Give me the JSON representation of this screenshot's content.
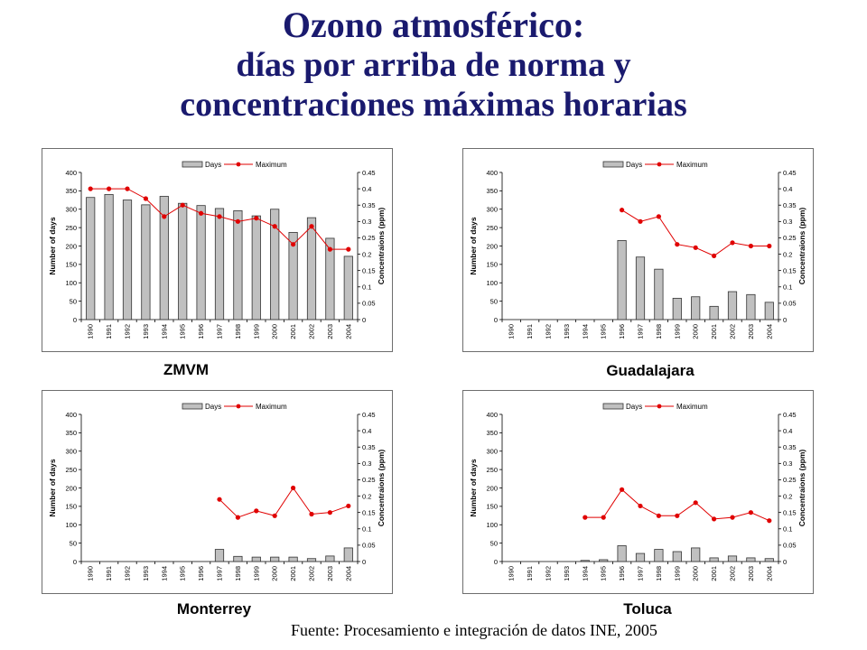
{
  "title": {
    "line1": "Ozono atmosférico:",
    "line2": "días por arriba de norma y",
    "line3": "concentraciones máximas horarias"
  },
  "source": "Fuente: Procesamiento e integración de datos INE, 2005",
  "colors": {
    "title": "#1a1a6e",
    "bar_fill": "#c0c0c0",
    "line": "#e00000"
  },
  "chart_data": [
    {
      "type": "bar",
      "city": "ZMVM",
      "categories": [
        "1990",
        "1991",
        "1992",
        "1993",
        "1994",
        "1995",
        "1996",
        "1997",
        "1998",
        "1999",
        "2000",
        "2001",
        "2002",
        "2003",
        "2004"
      ],
      "ylabel": "Number of days",
      "y2label": "Concentraions (ppm)",
      "ylim": [
        0,
        400
      ],
      "y2lim": [
        0,
        0.45
      ],
      "yticks": [
        "0",
        "50",
        "100",
        "150",
        "200",
        "250",
        "300",
        "350",
        "400"
      ],
      "y2ticks": [
        "0",
        "0.05",
        "0.1",
        "0.15",
        "0.2",
        "0.25",
        "0.3",
        "0.35",
        "0.4",
        "0.45"
      ],
      "legend": [
        "Days",
        "Maximum"
      ],
      "series": [
        {
          "name": "Days",
          "kind": "bar",
          "values": [
            332,
            340,
            325,
            312,
            335,
            316,
            310,
            302,
            296,
            282,
            300,
            237,
            277,
            221,
            172
          ]
        },
        {
          "name": "Maximum",
          "kind": "line",
          "values": [
            0.4,
            0.4,
            0.4,
            0.37,
            0.315,
            0.35,
            0.325,
            0.315,
            0.3,
            0.31,
            0.285,
            0.23,
            0.285,
            0.215,
            0.215
          ]
        }
      ]
    },
    {
      "type": "bar",
      "city": "Guadalajara",
      "categories": [
        "1990",
        "1991",
        "1992",
        "1993",
        "1994",
        "1995",
        "1996",
        "1997",
        "1998",
        "1999",
        "2000",
        "2001",
        "2002",
        "2003",
        "2004"
      ],
      "ylabel": "Number of days",
      "y2label": "Concentraions (ppm)",
      "ylim": [
        0,
        400
      ],
      "y2lim": [
        0,
        0.45
      ],
      "yticks": [
        "0",
        "50",
        "100",
        "150",
        "200",
        "250",
        "300",
        "350",
        "400"
      ],
      "y2ticks": [
        "0",
        "0.05",
        "0.1",
        "0.15",
        "0.2",
        "0.25",
        "0.3",
        "0.35",
        "0.4",
        "0.45"
      ],
      "legend": [
        "Days",
        "Maximum"
      ],
      "series": [
        {
          "name": "Days",
          "kind": "bar",
          "values": [
            null,
            null,
            null,
            null,
            null,
            null,
            215,
            170,
            137,
            58,
            62,
            36,
            76,
            68,
            47
          ]
        },
        {
          "name": "Maximum",
          "kind": "line",
          "values": [
            null,
            null,
            null,
            null,
            null,
            null,
            0.335,
            0.3,
            0.315,
            0.23,
            0.22,
            0.195,
            0.235,
            0.225,
            0.225
          ]
        }
      ]
    },
    {
      "type": "bar",
      "city": "Monterrey",
      "categories": [
        "1990",
        "1991",
        "1992",
        "1993",
        "1994",
        "1995",
        "1996",
        "1997",
        "1998",
        "1999",
        "2000",
        "2001",
        "2002",
        "2003",
        "2004"
      ],
      "ylabel": "Number of days",
      "y2label": "Concentraions (ppm)",
      "ylim": [
        0,
        400
      ],
      "y2lim": [
        0,
        0.45
      ],
      "yticks": [
        "0",
        "50",
        "100",
        "150",
        "200",
        "250",
        "300",
        "350",
        "400"
      ],
      "y2ticks": [
        "0",
        "0.05",
        "0.1",
        "0.15",
        "0.2",
        "0.25",
        "0.3",
        "0.35",
        "0.4",
        "0.45"
      ],
      "legend": [
        "Days",
        "Maximum"
      ],
      "series": [
        {
          "name": "Days",
          "kind": "bar",
          "values": [
            null,
            null,
            null,
            null,
            null,
            null,
            null,
            33,
            14,
            12,
            12,
            12,
            8,
            15,
            37
          ]
        },
        {
          "name": "Maximum",
          "kind": "line",
          "values": [
            null,
            null,
            null,
            null,
            null,
            null,
            null,
            0.19,
            0.135,
            0.155,
            0.14,
            0.225,
            0.145,
            0.15,
            0.17
          ]
        }
      ]
    },
    {
      "type": "bar",
      "city": "Toluca",
      "categories": [
        "1990",
        "1991",
        "1992",
        "1993",
        "1994",
        "1995",
        "1996",
        "1997",
        "1998",
        "1999",
        "2000",
        "2001",
        "2002",
        "2003",
        "2004"
      ],
      "ylabel": "Number of days",
      "y2label": "Concentraions (ppm)",
      "ylim": [
        0,
        400
      ],
      "y2lim": [
        0,
        0.45
      ],
      "yticks": [
        "0",
        "50",
        "100",
        "150",
        "200",
        "250",
        "300",
        "350",
        "400"
      ],
      "y2ticks": [
        "0",
        "0.05",
        "0.1",
        "0.15",
        "0.2",
        "0.25",
        "0.3",
        "0.35",
        "0.4",
        "0.45"
      ],
      "legend": [
        "Days",
        "Maximum"
      ],
      "series": [
        {
          "name": "Days",
          "kind": "bar",
          "values": [
            null,
            null,
            null,
            null,
            3,
            5,
            43,
            22,
            33,
            27,
            37,
            10,
            15,
            10,
            8
          ]
        },
        {
          "name": "Maximum",
          "kind": "line",
          "values": [
            null,
            null,
            null,
            null,
            0.135,
            0.135,
            0.22,
            0.17,
            0.14,
            0.14,
            0.18,
            0.13,
            0.135,
            0.15,
            0.125
          ]
        }
      ]
    }
  ]
}
